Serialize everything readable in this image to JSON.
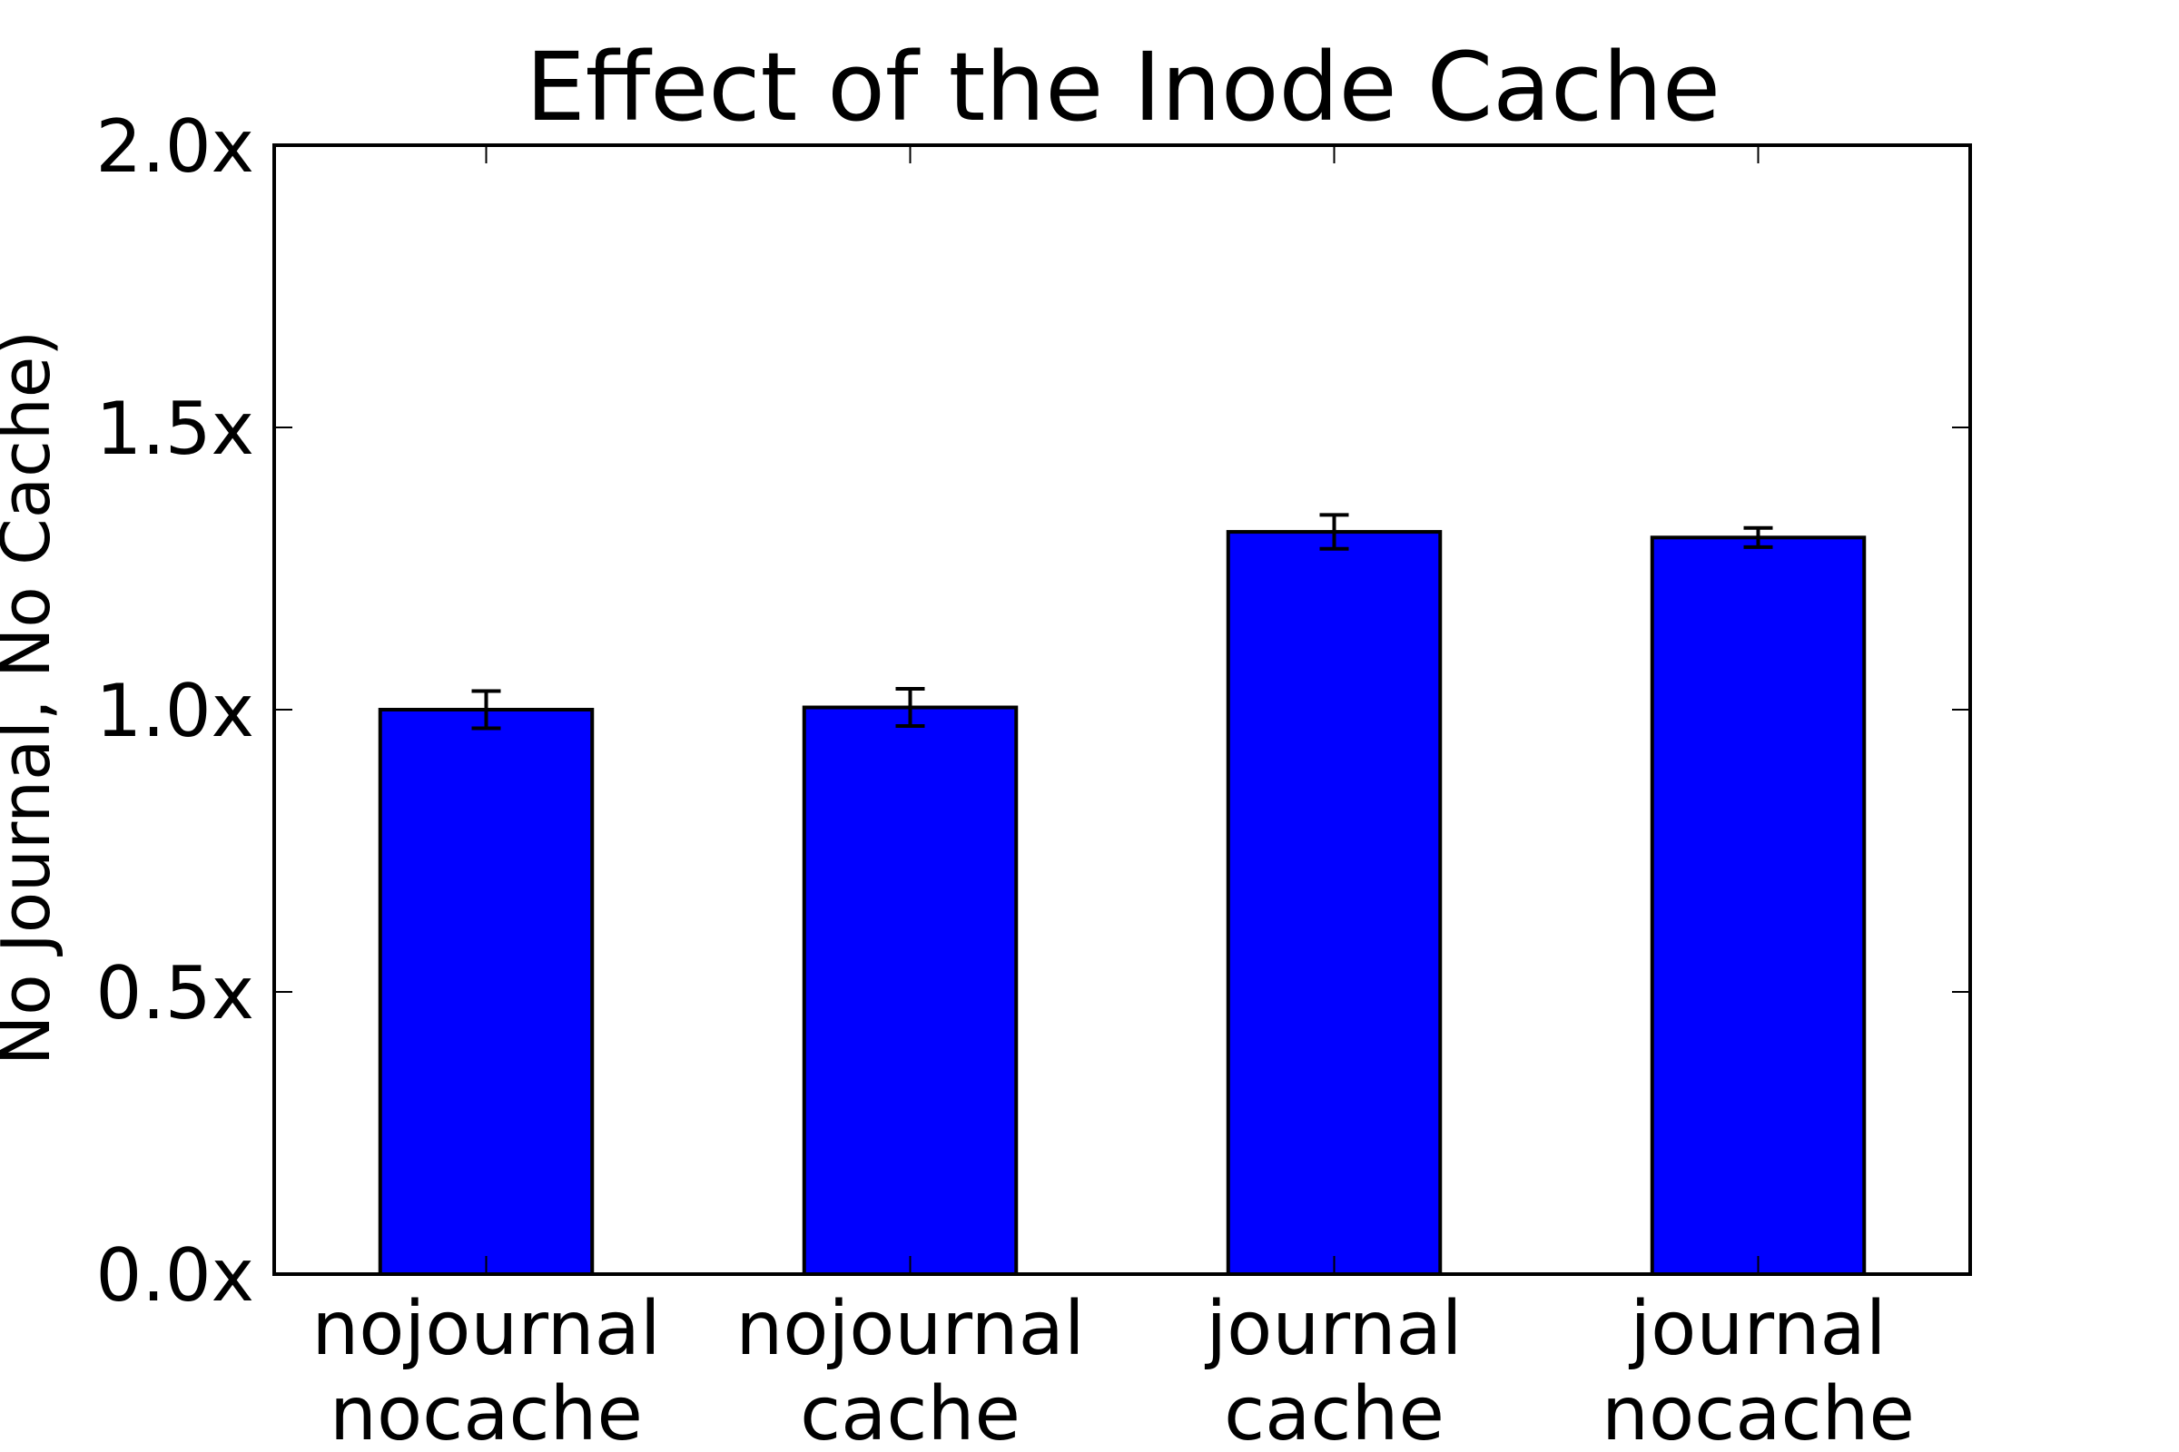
{
  "chart_data": {
    "type": "bar",
    "title": "Effect of the Inode Cache",
    "xlabel": "",
    "ylabel": "No Journal, No Cache)",
    "categories": [
      [
        "nojournal",
        "nocache"
      ],
      [
        "nojournal",
        "cache"
      ],
      [
        "journal",
        "cache"
      ],
      [
        "journal",
        "nocache"
      ]
    ],
    "values": [
      1.0,
      1.004,
      1.315,
      1.305
    ],
    "errors": [
      0.033,
      0.033,
      0.03,
      0.017
    ],
    "ylim": [
      0,
      2.0
    ],
    "yticks": [
      0.0,
      0.5,
      1.0,
      1.5,
      2.0
    ],
    "ytick_labels": [
      "0.0x",
      "0.5x",
      "1.0x",
      "1.5x",
      "2.0x"
    ],
    "bar_color": "#0000ff",
    "edge_color": "#000000",
    "grid": false,
    "legend": "none"
  }
}
